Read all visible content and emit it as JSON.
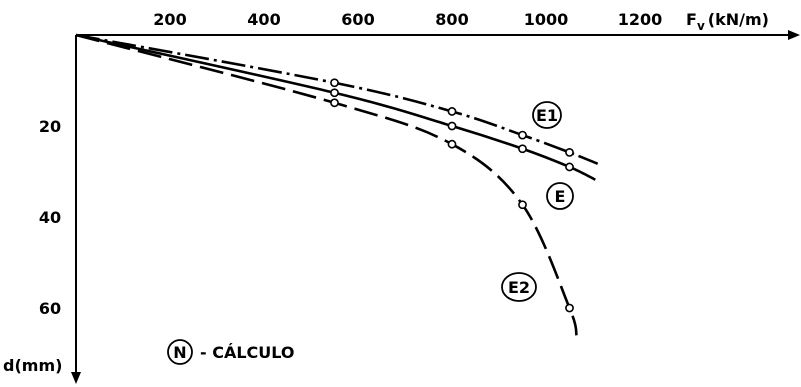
{
  "chart_data": {
    "type": "line",
    "x": {
      "label_main": "F",
      "label_sub": "v",
      "label_unit": "(kN/m)",
      "ticks": [
        200,
        400,
        600,
        800,
        1000,
        1200
      ],
      "range": [
        0,
        1200
      ]
    },
    "y": {
      "label_main": "d",
      "label_unit": "(mm)",
      "ticks": [
        20,
        40,
        60
      ],
      "range": [
        0,
        66
      ],
      "inverted": true
    },
    "series": [
      {
        "name": "E1",
        "dash": "dashdot",
        "points": [
          [
            0,
            0
          ],
          [
            550,
            10.5
          ],
          [
            800,
            16.8
          ],
          [
            950,
            22
          ],
          [
            1050,
            25.8
          ]
        ],
        "line_end": [
          1110,
          28.3
        ]
      },
      {
        "name": "E",
        "dash": "solid",
        "points": [
          [
            0,
            0
          ],
          [
            550,
            12.7
          ],
          [
            800,
            20
          ],
          [
            950,
            25
          ],
          [
            1050,
            29
          ]
        ],
        "line_end": [
          1105,
          31.8
        ]
      },
      {
        "name": "E2",
        "dash": "longdash",
        "points": [
          [
            0,
            0
          ],
          [
            550,
            14.9
          ],
          [
            800,
            24
          ],
          [
            950,
            37.3
          ],
          [
            1050,
            60
          ]
        ],
        "line_end": [
          1065,
          66
        ]
      }
    ],
    "annotation": {
      "symbol": "N",
      "text": "- CÁLCULO"
    }
  }
}
